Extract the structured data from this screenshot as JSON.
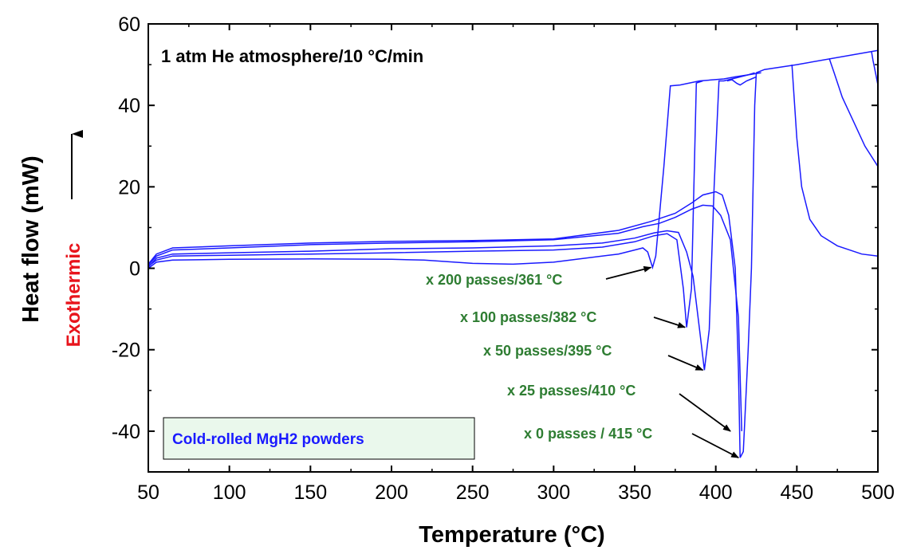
{
  "chart_data": {
    "type": "line",
    "xlabel": "Temperature (°C)",
    "ylabel": "Heat flow (mW)",
    "exo_label": "Exothermic",
    "xlim": [
      50,
      500
    ],
    "ylim": [
      -50,
      60
    ],
    "xticks": [
      50,
      100,
      150,
      200,
      250,
      300,
      350,
      400,
      450,
      500
    ],
    "yticks": [
      -40,
      -20,
      0,
      20,
      40,
      60
    ],
    "condition_text": "1 atm He atmosphere/10 °C/min",
    "legend_text": "Cold-rolled MgH2 powders",
    "series_color": "#1a1aff",
    "annotation_color": "#2e7d32",
    "series": [
      {
        "label": "x 200 passes/361 °C",
        "peak_temperature_c": 361,
        "points": [
          [
            50,
            0.8
          ],
          [
            55,
            3
          ],
          [
            65,
            4.5
          ],
          [
            100,
            5
          ],
          [
            150,
            5.8
          ],
          [
            200,
            6.2
          ],
          [
            250,
            6.5
          ],
          [
            300,
            7
          ],
          [
            340,
            8.6
          ],
          [
            355,
            10.2
          ],
          [
            365,
            11
          ],
          [
            375,
            12.5
          ],
          [
            385,
            14.5
          ],
          [
            392,
            15.5
          ],
          [
            398,
            15.3
          ],
          [
            403,
            13
          ],
          [
            409,
            7
          ],
          [
            414,
            -12
          ],
          [
            416,
            -40
          ]
        ]
      },
      {
        "label": "x 100 passes/382 °C",
        "peak_temperature_c": 382,
        "points": [
          [
            50,
            0.3
          ],
          [
            55,
            2.5
          ],
          [
            65,
            3.5
          ],
          [
            100,
            3.8
          ],
          [
            150,
            4.2
          ],
          [
            200,
            4.8
          ],
          [
            250,
            5
          ],
          [
            300,
            5.5
          ],
          [
            330,
            6.2
          ],
          [
            350,
            7.4
          ],
          [
            362,
            8.7
          ],
          [
            370,
            9.2
          ],
          [
            377,
            8.8
          ],
          [
            382,
            4
          ],
          [
            386,
            -2
          ],
          [
            390,
            -15
          ],
          [
            393,
            -25
          ],
          [
            396,
            -15
          ],
          [
            399,
            20
          ],
          [
            402,
            46
          ],
          [
            405,
            46
          ],
          [
            410,
            46.5
          ],
          [
            420,
            47.5
          ],
          [
            424,
            48
          ]
        ]
      },
      {
        "label": "x 50 passes/395 °C",
        "peak_temperature_c": 395,
        "points": [
          [
            50,
            0.5
          ],
          [
            55,
            2
          ],
          [
            65,
            3
          ],
          [
            100,
            3.2
          ],
          [
            150,
            3.5
          ],
          [
            200,
            3.8
          ],
          [
            250,
            4.2
          ],
          [
            300,
            4.5
          ],
          [
            330,
            5.2
          ],
          [
            350,
            6.5
          ],
          [
            362,
            8
          ],
          [
            370,
            8.5
          ],
          [
            376,
            7
          ],
          [
            380,
            -5
          ],
          [
            382,
            -14.5
          ],
          [
            385,
            -5
          ],
          [
            388,
            45.5
          ],
          [
            392,
            46
          ]
        ]
      },
      {
        "label": "x 25 passes/410 °C",
        "peak_temperature_c": 410,
        "points": [
          [
            50,
            0
          ],
          [
            55,
            1.5
          ],
          [
            65,
            2
          ],
          [
            100,
            2.2
          ],
          [
            150,
            2.3
          ],
          [
            200,
            2.2
          ],
          [
            220,
            2
          ],
          [
            250,
            1.2
          ],
          [
            275,
            1
          ],
          [
            300,
            1.5
          ],
          [
            320,
            2.5
          ],
          [
            340,
            3.5
          ],
          [
            350,
            4.5
          ],
          [
            355,
            5
          ],
          [
            358,
            4
          ],
          [
            361,
            0.2
          ],
          [
            363,
            3
          ],
          [
            368,
            25
          ],
          [
            372,
            44.8
          ],
          [
            378,
            45
          ],
          [
            390,
            46
          ],
          [
            405,
            46.5
          ],
          [
            412,
            47
          ],
          [
            420,
            47.5
          ],
          [
            428,
            48
          ]
        ]
      },
      {
        "label": "x 0 passes / 415 °C",
        "peak_temperature_c": 415,
        "points": [
          [
            50,
            1
          ],
          [
            55,
            3.5
          ],
          [
            65,
            5
          ],
          [
            100,
            5.5
          ],
          [
            150,
            6.2
          ],
          [
            200,
            6.6
          ],
          [
            250,
            6.8
          ],
          [
            300,
            7.2
          ],
          [
            340,
            9.3
          ],
          [
            360,
            11.5
          ],
          [
            375,
            13.5
          ],
          [
            385,
            16
          ],
          [
            392,
            18
          ],
          [
            400,
            18.8
          ],
          [
            404,
            18
          ],
          [
            408,
            13
          ],
          [
            412,
            0
          ],
          [
            414,
            -25
          ],
          [
            415,
            -46.5
          ],
          [
            417,
            -45
          ],
          [
            420,
            -20
          ],
          [
            422,
            0
          ],
          [
            424,
            40
          ],
          [
            425,
            48
          ],
          [
            430,
            48.8
          ],
          [
            450,
            50
          ],
          [
            500,
            53.5
          ]
        ]
      }
    ],
    "extra_lines": [
      {
        "points": [
          [
            407,
            46
          ],
          [
            410,
            46.3
          ],
          [
            413,
            45.4
          ],
          [
            415,
            45
          ],
          [
            417,
            45.5
          ],
          [
            419,
            46
          ],
          [
            422,
            46.5
          ],
          [
            425,
            47
          ]
        ]
      },
      {
        "points": [
          [
            447,
            50
          ],
          [
            450,
            32
          ],
          [
            453,
            20
          ],
          [
            458,
            12
          ],
          [
            465,
            8
          ],
          [
            475,
            5.5
          ],
          [
            490,
            3.5
          ],
          [
            500,
            3
          ]
        ]
      },
      {
        "points": [
          [
            470,
            51.5
          ],
          [
            473,
            48
          ],
          [
            478,
            42
          ],
          [
            485,
            36
          ],
          [
            492,
            30
          ],
          [
            500,
            25
          ]
        ]
      },
      {
        "points": [
          [
            496,
            53.3
          ],
          [
            497,
            51
          ],
          [
            499,
            47
          ],
          [
            500,
            45
          ]
        ]
      }
    ],
    "arrows": [
      {
        "target": [
          361,
          0.2
        ]
      },
      {
        "target": [
          382,
          -14.5
        ]
      },
      {
        "target": [
          393,
          -25
        ]
      },
      {
        "target": [
          410,
          -40
        ]
      },
      {
        "target": [
          415,
          -46.5
        ]
      }
    ]
  }
}
